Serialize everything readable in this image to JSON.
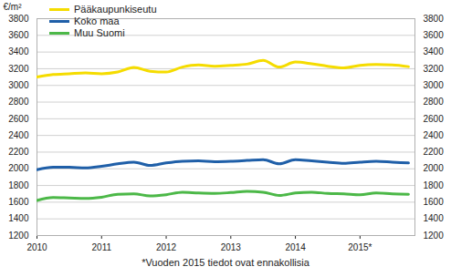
{
  "chart_data": {
    "type": "line",
    "ylabel": "€/m²",
    "caption": "*Vuoden 2015 tiedot ovat ennakollisia",
    "x": [
      2010,
      2010.25,
      2010.5,
      2010.75,
      2011,
      2011.25,
      2011.5,
      2011.75,
      2012,
      2012.25,
      2012.5,
      2012.75,
      2013,
      2013.25,
      2013.5,
      2013.75,
      2014,
      2014.25,
      2014.5,
      2014.75,
      2015,
      2015.25,
      2015.5,
      2015.75
    ],
    "series": [
      {
        "name": "Pääkaupunkiseutu",
        "color": "#f5dc00",
        "values": [
          3100,
          3130,
          3140,
          3150,
          3140,
          3160,
          3215,
          3170,
          3160,
          3220,
          3245,
          3230,
          3240,
          3255,
          3300,
          3220,
          3280,
          3260,
          3230,
          3210,
          3240,
          3250,
          3245,
          3225
        ]
      },
      {
        "name": "Koko maa",
        "color": "#1f5fa8",
        "values": [
          1990,
          2020,
          2020,
          2010,
          2030,
          2060,
          2080,
          2040,
          2070,
          2090,
          2095,
          2085,
          2090,
          2100,
          2110,
          2060,
          2110,
          2095,
          2080,
          2065,
          2080,
          2090,
          2080,
          2070
        ]
      },
      {
        "name": "Muu Suomi",
        "color": "#4cb848",
        "values": [
          1620,
          1655,
          1650,
          1645,
          1660,
          1695,
          1700,
          1675,
          1690,
          1720,
          1710,
          1705,
          1715,
          1730,
          1720,
          1680,
          1710,
          1720,
          1705,
          1700,
          1690,
          1710,
          1700,
          1695
        ]
      }
    ],
    "xlim": [
      2010,
      2015.85
    ],
    "xticks": [
      2010,
      2011,
      2012,
      2013,
      2014,
      {
        "value": 2015,
        "label": "2015*"
      }
    ],
    "ylim": [
      1200,
      3800
    ],
    "yticks": [
      1200,
      1400,
      1600,
      1800,
      2000,
      2200,
      2400,
      2600,
      2800,
      3000,
      3200,
      3400,
      3600,
      3800
    ],
    "y2lim": [
      1200,
      3800
    ],
    "y2ticks": [
      1200,
      1400,
      1600,
      1800,
      2000,
      2200,
      2400,
      2600,
      2800,
      3000,
      3200,
      3400,
      3600,
      3800
    ],
    "grid": true,
    "legend": "top-left"
  }
}
